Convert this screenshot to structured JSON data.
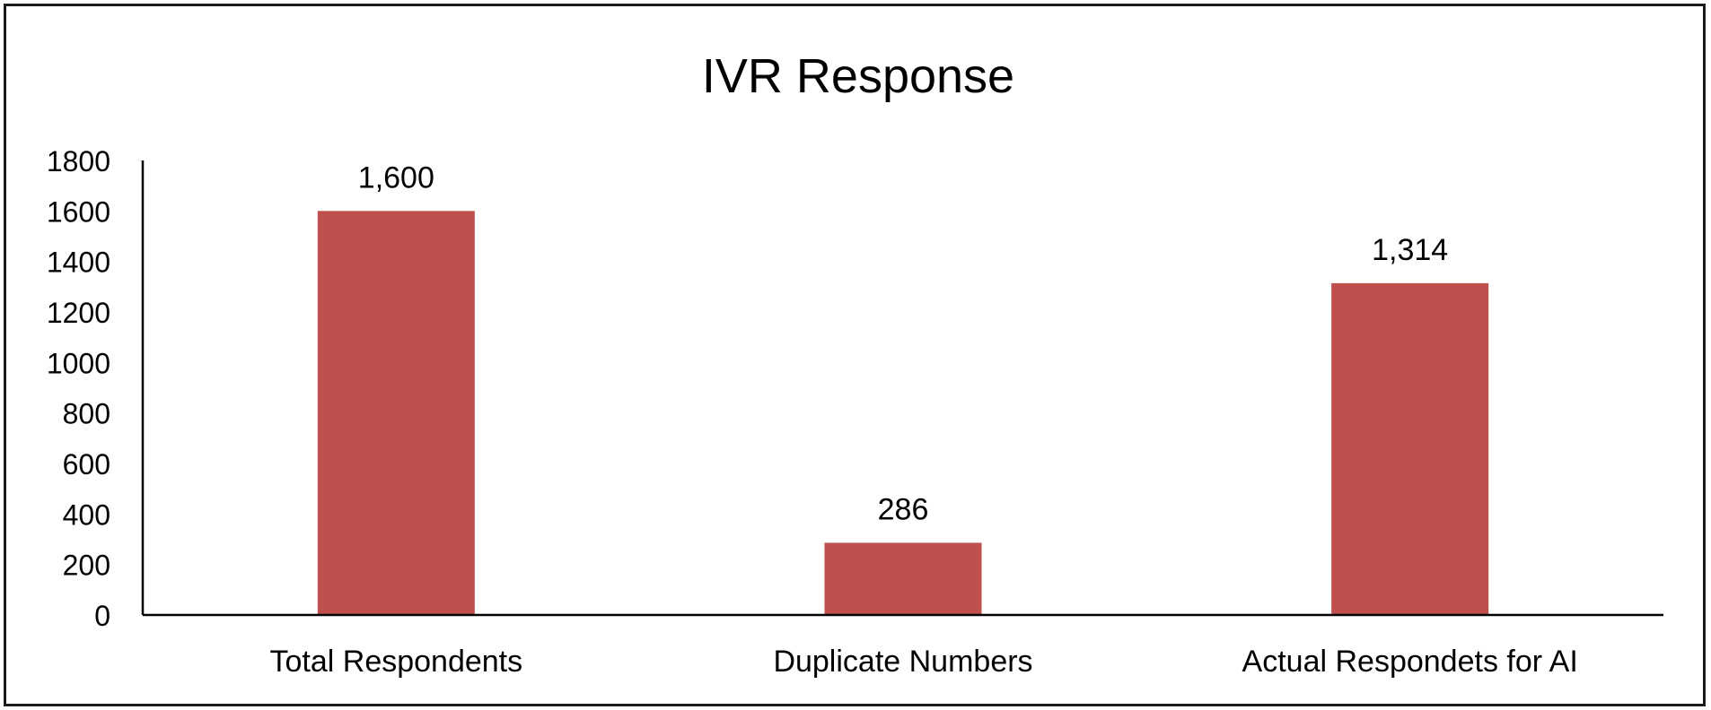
{
  "chart_data": {
    "type": "bar",
    "title": "IVR Response",
    "categories": [
      "Total Respondents",
      "Duplicate Numbers",
      "Actual Respondets for AI"
    ],
    "values": [
      1600,
      286,
      1314
    ],
    "data_labels": [
      "1,600",
      "286",
      "1,314"
    ],
    "ylim": [
      0,
      1800
    ],
    "yticks": [
      0,
      200,
      400,
      600,
      800,
      1000,
      1200,
      1400,
      1600,
      1800
    ],
    "xlabel": "",
    "ylabel": "",
    "grid": false,
    "legend": "none",
    "bar_color": "#c0504d"
  }
}
